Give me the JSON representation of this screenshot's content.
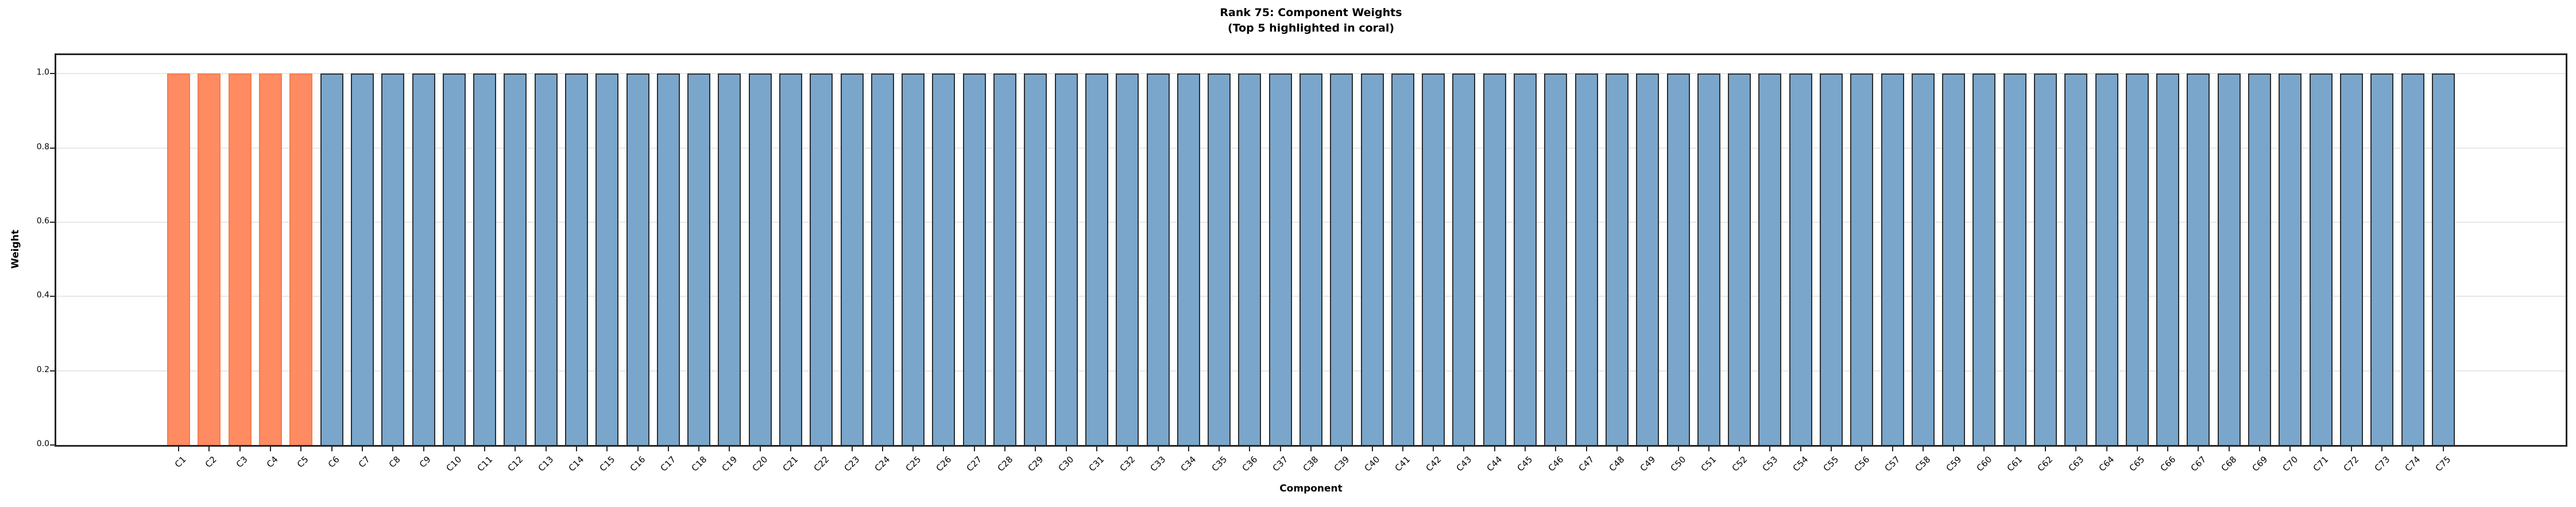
{
  "chart_data": {
    "type": "bar",
    "title_line1": "Rank 75: Component Weights",
    "title_line2": "(Top 5 highlighted in coral)",
    "title": "Rank 75: Component Weights\n(Top 5 highlighted in coral)",
    "xlabel": "Component",
    "ylabel": "Weight",
    "categories": [
      "C1",
      "C2",
      "C3",
      "C4",
      "C5",
      "C6",
      "C7",
      "C8",
      "C9",
      "C10",
      "C11",
      "C12",
      "C13",
      "C14",
      "C15",
      "C16",
      "C17",
      "C18",
      "C19",
      "C20",
      "C21",
      "C22",
      "C23",
      "C24",
      "C25",
      "C26",
      "C27",
      "C28",
      "C29",
      "C30",
      "C31",
      "C32",
      "C33",
      "C34",
      "C35",
      "C36",
      "C37",
      "C38",
      "C39",
      "C40",
      "C41",
      "C42",
      "C43",
      "C44",
      "C45",
      "C46",
      "C47",
      "C48",
      "C49",
      "C50",
      "C51",
      "C52",
      "C53",
      "C54",
      "C55",
      "C56",
      "C57",
      "C58",
      "C59",
      "C60",
      "C61",
      "C62",
      "C63",
      "C64",
      "C65",
      "C66",
      "C67",
      "C68",
      "C69",
      "C70",
      "C71",
      "C72",
      "C73",
      "C74",
      "C75"
    ],
    "values": [
      1.0,
      1.0,
      1.0,
      1.0,
      1.0,
      1.0,
      1.0,
      1.0,
      1.0,
      1.0,
      1.0,
      1.0,
      1.0,
      1.0,
      1.0,
      1.0,
      1.0,
      1.0,
      1.0,
      1.0,
      1.0,
      1.0,
      1.0,
      1.0,
      1.0,
      1.0,
      1.0,
      1.0,
      1.0,
      1.0,
      1.0,
      1.0,
      1.0,
      1.0,
      1.0,
      1.0,
      1.0,
      1.0,
      1.0,
      1.0,
      1.0,
      1.0,
      1.0,
      1.0,
      1.0,
      1.0,
      1.0,
      1.0,
      1.0,
      1.0,
      1.0,
      1.0,
      1.0,
      1.0,
      1.0,
      1.0,
      1.0,
      1.0,
      1.0,
      1.0,
      1.0,
      1.0,
      1.0,
      1.0,
      1.0,
      1.0,
      1.0,
      1.0,
      1.0,
      1.0,
      1.0,
      1.0,
      1.0,
      1.0,
      1.0
    ],
    "highlighted_categories": [
      "C1",
      "C2",
      "C3",
      "C4",
      "C5"
    ],
    "highlight_count": 5,
    "yticks": [
      0.0,
      0.2,
      0.4,
      0.6,
      0.8,
      1.0
    ],
    "ytick_labels": [
      "0.0",
      "0.2",
      "0.4",
      "0.6",
      "0.8",
      "1.0"
    ],
    "ylim": [
      0,
      1.05
    ],
    "grid": "horizontal",
    "legend_position": "none",
    "colors": {
      "highlight_fill": "#ff8b62",
      "highlight_edge": "#f57c50",
      "bar_fill": "#7aa6cb",
      "bar_edge": "#2b2e32",
      "gridline": "#e8e8e8",
      "spine": "#262626",
      "text": "#000000"
    }
  }
}
